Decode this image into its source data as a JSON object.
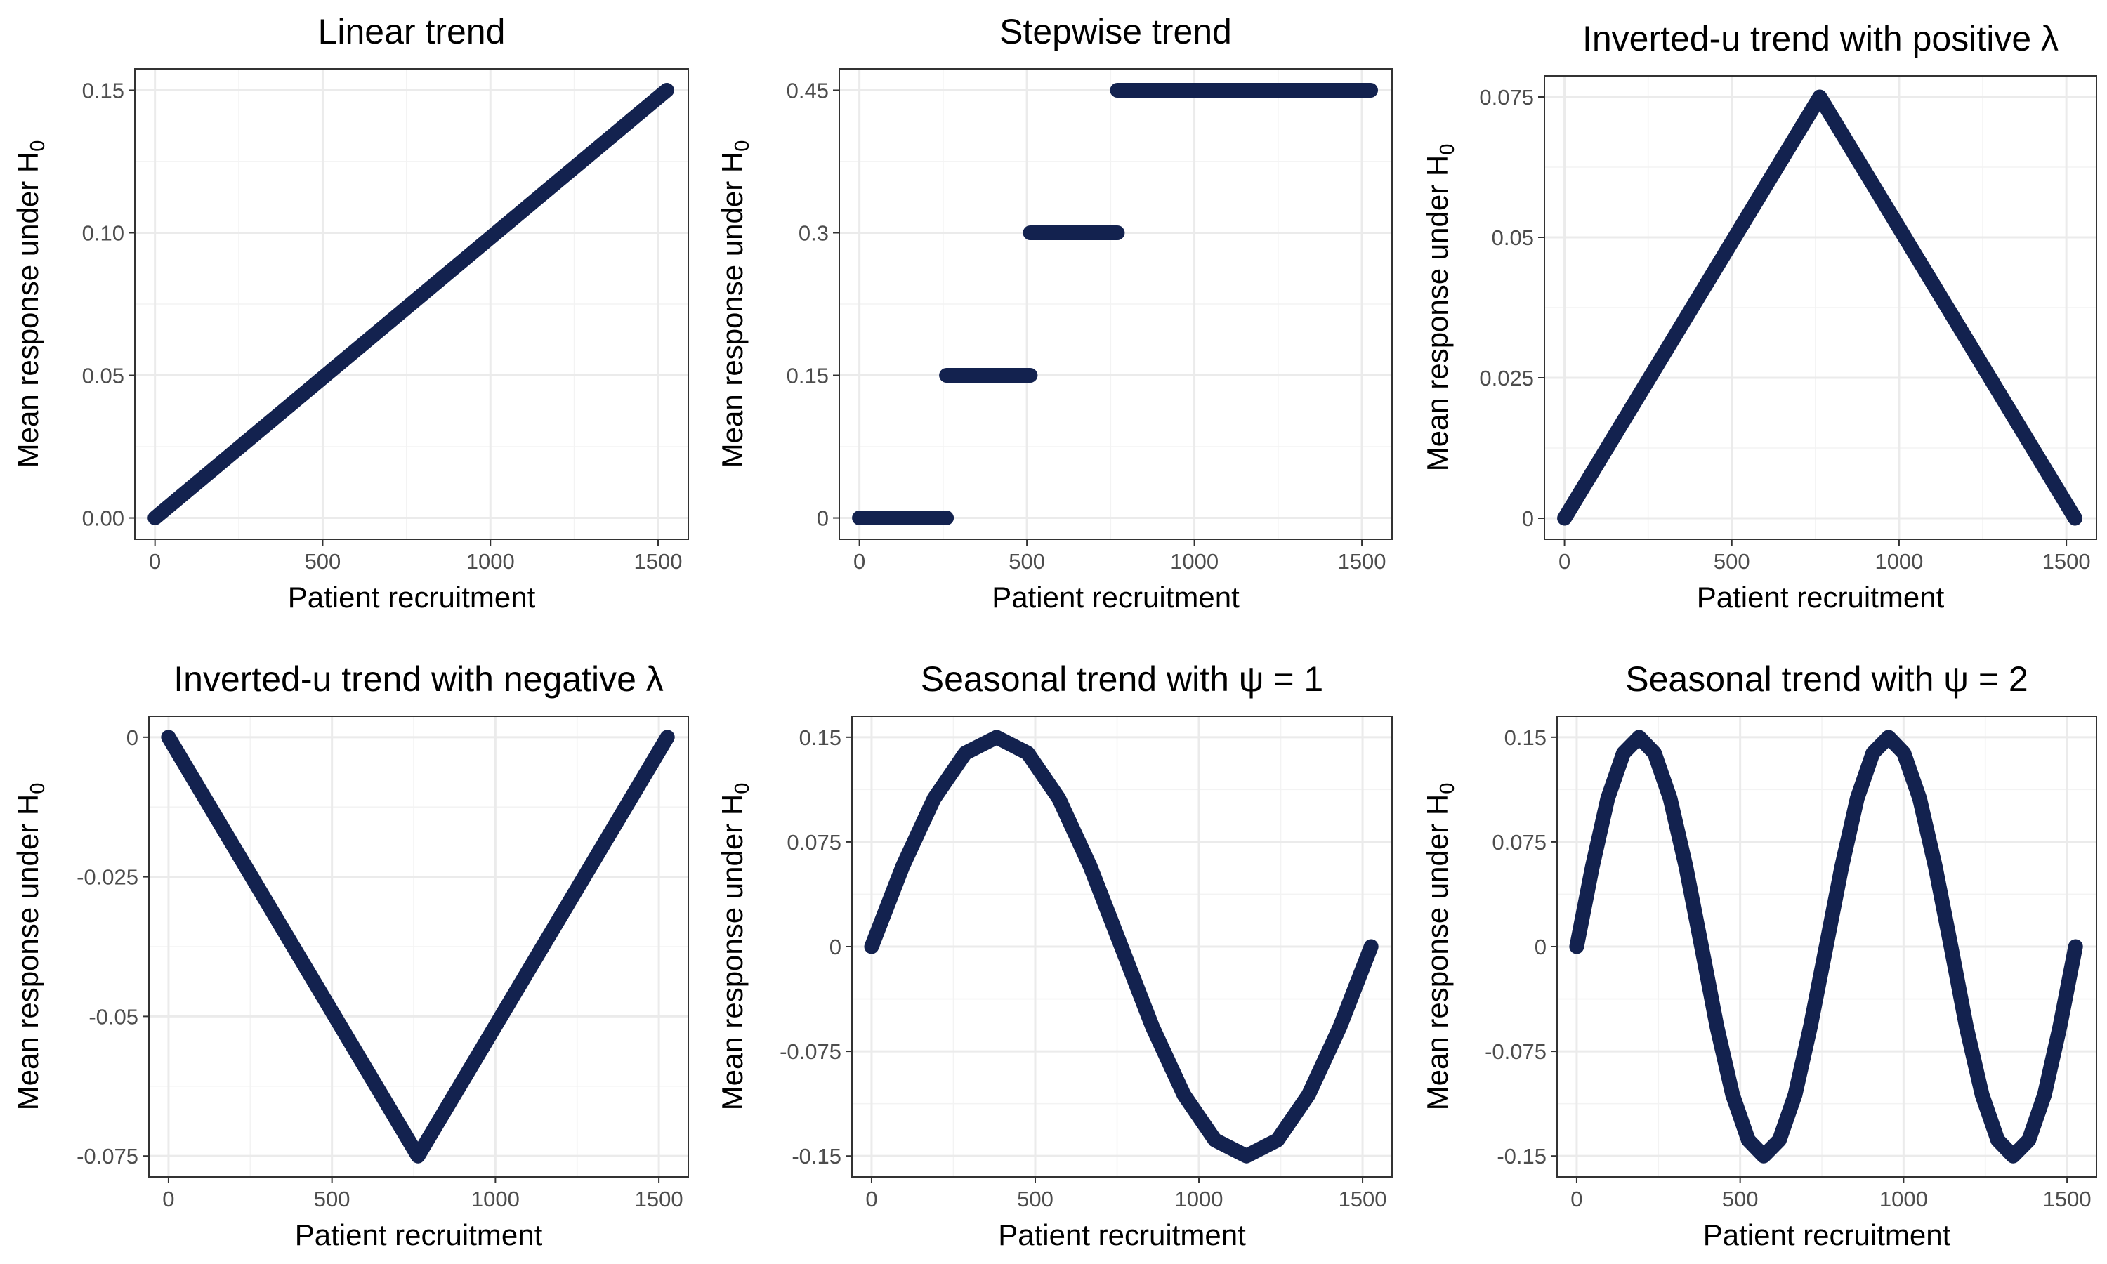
{
  "chart_data": [
    {
      "type": "line",
      "title": "Linear trend",
      "xlabel": "Patient recruitment",
      "ylabel": "Mean response under H",
      "ylabel_subscript": "0",
      "xlim": [
        -60,
        1590
      ],
      "ylim": [
        -0.0075,
        0.1575
      ],
      "xticks": [
        0,
        500,
        1000,
        1500
      ],
      "xtick_labels": [
        "0",
        "500",
        "1000",
        "1500"
      ],
      "yticks": [
        0,
        0.05,
        0.1,
        0.15
      ],
      "ytick_labels": [
        "0.00",
        "0.05",
        "0.10",
        "0.15"
      ],
      "grid": true,
      "color": "#13224f",
      "series": [
        {
          "segments": [
            {
              "x": [
                0,
                1526
              ],
              "y": [
                0,
                0.15
              ]
            }
          ]
        }
      ]
    },
    {
      "type": "line",
      "title": "Stepwise trend",
      "xlabel": "Patient recruitment",
      "ylabel": "Mean response under H",
      "ylabel_subscript": "0",
      "xlim": [
        -60,
        1590
      ],
      "ylim": [
        -0.0225,
        0.4725
      ],
      "xticks": [
        0,
        500,
        1000,
        1500
      ],
      "xtick_labels": [
        "0",
        "500",
        "1000",
        "1500"
      ],
      "yticks": [
        0,
        0.15,
        0.3,
        0.45
      ],
      "ytick_labels": [
        "0",
        "0.15",
        "0.3",
        "0.45"
      ],
      "grid": true,
      "color": "#13224f",
      "series": [
        {
          "segments": [
            {
              "x": [
                0,
                260
              ],
              "y": [
                0,
                0
              ]
            },
            {
              "x": [
                260,
                510
              ],
              "y": [
                0.15,
                0.15
              ]
            },
            {
              "x": [
                510,
                770
              ],
              "y": [
                0.3,
                0.3
              ]
            },
            {
              "x": [
                770,
                1526
              ],
              "y": [
                0.45,
                0.45
              ]
            }
          ]
        }
      ]
    },
    {
      "type": "line",
      "title": "Inverted-u trend with positive λ",
      "xlabel": "Patient recruitment",
      "ylabel": "Mean response under H",
      "ylabel_subscript": "0",
      "xlim": [
        -60,
        1590
      ],
      "ylim": [
        -0.00375,
        0.07875
      ],
      "xticks": [
        0,
        500,
        1000,
        1500
      ],
      "xtick_labels": [
        "0",
        "500",
        "1000",
        "1500"
      ],
      "yticks": [
        0,
        0.025,
        0.05,
        0.075
      ],
      "ytick_labels": [
        "0",
        "0.025",
        "0.05",
        "0.075"
      ],
      "grid": true,
      "color": "#13224f",
      "series": [
        {
          "segments": [
            {
              "x": [
                0,
                763,
                1526
              ],
              "y": [
                0,
                0.075,
                0
              ]
            }
          ]
        }
      ]
    },
    {
      "type": "line",
      "title": "Inverted-u trend with negative λ",
      "xlabel": "Patient recruitment",
      "ylabel": "Mean response under H",
      "ylabel_subscript": "0",
      "xlim": [
        -60,
        1590
      ],
      "ylim": [
        -0.07875,
        0.00375
      ],
      "xticks": [
        0,
        500,
        1000,
        1500
      ],
      "xtick_labels": [
        "0",
        "500",
        "1000",
        "1500"
      ],
      "yticks": [
        -0.075,
        -0.05,
        -0.025,
        0
      ],
      "ytick_labels": [
        "-0.075",
        "-0.05",
        "-0.025",
        "0"
      ],
      "grid": true,
      "color": "#13224f",
      "series": [
        {
          "segments": [
            {
              "x": [
                0,
                763,
                1526
              ],
              "y": [
                0,
                -0.075,
                0
              ]
            }
          ]
        }
      ]
    },
    {
      "type": "line",
      "title": "Seasonal trend with ψ = 1",
      "xlabel": "Patient recruitment",
      "ylabel": "Mean response under H",
      "ylabel_subscript": "0",
      "xlim": [
        -60,
        1590
      ],
      "ylim": [
        -0.165,
        0.165
      ],
      "xticks": [
        0,
        500,
        1000,
        1500
      ],
      "xtick_labels": [
        "0",
        "500",
        "1000",
        "1500"
      ],
      "yticks": [
        -0.15,
        -0.075,
        0,
        0.075,
        0.15
      ],
      "ytick_labels": [
        "-0.15",
        "-0.075",
        "0",
        "0.075",
        "0.15"
      ],
      "grid": true,
      "color": "#13224f",
      "series": [
        {
          "segments": [
            {
              "x": [
                0,
                95,
                191,
                286,
                382,
                477,
                572,
                668,
                763,
                858,
                954,
                1049,
                1145,
                1240,
                1335,
                1431,
                1526
              ],
              "y": [
                0,
                0.0574,
                0.1061,
                0.1386,
                0.15,
                0.1386,
                0.1061,
                0.0574,
                0,
                -0.0574,
                -0.1061,
                -0.1386,
                -0.15,
                -0.1386,
                -0.1061,
                -0.0574,
                0
              ]
            }
          ]
        }
      ]
    },
    {
      "type": "line",
      "title": "Seasonal trend with ψ = 2",
      "xlabel": "Patient recruitment",
      "ylabel": "Mean response under H",
      "ylabel_subscript": "0",
      "xlim": [
        -60,
        1590
      ],
      "ylim": [
        -0.165,
        0.165
      ],
      "xticks": [
        0,
        500,
        1000,
        1500
      ],
      "xtick_labels": [
        "0",
        "500",
        "1000",
        "1500"
      ],
      "yticks": [
        -0.15,
        -0.075,
        0,
        0.075,
        0.15
      ],
      "ytick_labels": [
        "-0.15",
        "-0.075",
        "0",
        "0.075",
        "0.15"
      ],
      "grid": true,
      "color": "#13224f",
      "series": [
        {
          "segments": [
            {
              "x": [
                0,
                48,
                95,
                143,
                191,
                238,
                286,
                334,
                382,
                429,
                477,
                525,
                572,
                620,
                668,
                715,
                763,
                811,
                858,
                906,
                954,
                1001,
                1049,
                1097,
                1145,
                1192,
                1240,
                1288,
                1335,
                1383,
                1431,
                1478,
                1526
              ],
              "y": [
                0,
                0.0574,
                0.1061,
                0.1386,
                0.15,
                0.1386,
                0.1061,
                0.0574,
                0,
                -0.0574,
                -0.1061,
                -0.1386,
                -0.15,
                -0.1386,
                -0.1061,
                -0.0574,
                0,
                0.0574,
                0.1061,
                0.1386,
                0.15,
                0.1386,
                0.1061,
                0.0574,
                0,
                -0.0574,
                -0.1061,
                -0.1386,
                -0.15,
                -0.1386,
                -0.1061,
                -0.0574,
                0
              ]
            }
          ]
        }
      ]
    }
  ]
}
